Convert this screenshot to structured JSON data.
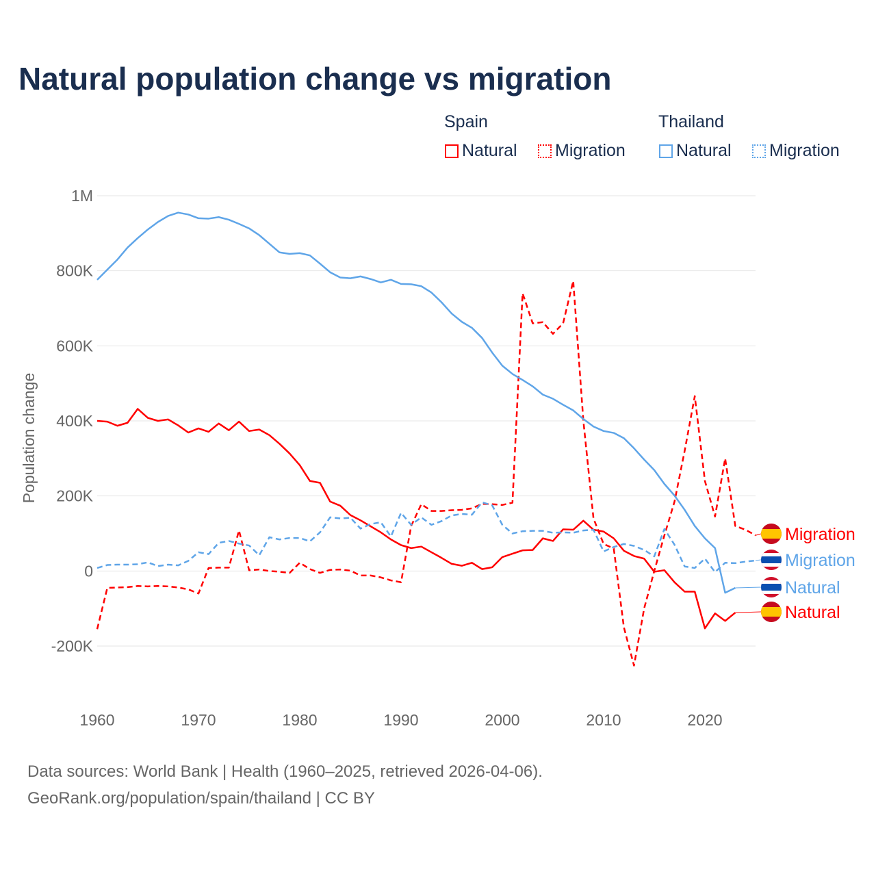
{
  "title": "Natural population change vs migration",
  "legend": {
    "groups": [
      {
        "name": "Spain",
        "color": "#ff0000",
        "items": [
          "Natural",
          "Migration"
        ]
      },
      {
        "name": "Thailand",
        "color": "#5fa5e8",
        "items": [
          "Natural",
          "Migration"
        ]
      }
    ]
  },
  "footer": {
    "line1": "Data sources: World Bank | Health (1960–2025, retrieved 2026-04-06).",
    "line2": "GeoRank.org/population/spain/thailand | CC BY"
  },
  "chart_data": {
    "type": "line",
    "title": "Natural population change vs migration",
    "xlabel": "",
    "ylabel": "Population change",
    "xlim": [
      1960,
      2025
    ],
    "ylim": [
      -200000,
      1000000
    ],
    "x_ticks": [
      "1960",
      "1970",
      "1980",
      "1990",
      "2000",
      "2010",
      "2020"
    ],
    "y_ticks": [
      {
        "v": 1000000,
        "l": "1M"
      },
      {
        "v": 800000,
        "l": "800K"
      },
      {
        "v": 600000,
        "l": "600K"
      },
      {
        "v": 400000,
        "l": "400K"
      },
      {
        "v": 200000,
        "l": "200K"
      },
      {
        "v": 0,
        "l": "0"
      },
      {
        "v": -200000,
        "l": "-200K"
      }
    ],
    "grid": true,
    "start_year": 1960,
    "units": "thousands",
    "series": [
      {
        "name": "Spain Natural",
        "label": "Natural",
        "country": "Spain",
        "color": "#ff0000",
        "dash": false,
        "values": [
          400,
          398,
          387,
          395,
          432,
          408,
          400,
          404,
          388,
          369,
          380,
          371,
          393,
          375,
          398,
          373,
          377,
          362,
          339,
          313,
          282,
          240,
          235,
          185,
          174,
          149,
          135,
          119,
          103,
          84,
          69,
          61,
          65,
          50,
          35,
          19,
          14,
          22,
          5,
          10,
          37,
          46,
          55,
          56,
          87,
          80,
          111,
          110,
          134,
          110,
          105,
          87,
          54,
          40,
          33,
          -2,
          2,
          -30,
          -55,
          -55,
          -153,
          -113,
          -133,
          -111
        ]
      },
      {
        "name": "Spain Migration",
        "label": "Migration",
        "country": "Spain",
        "color": "#ff0000",
        "dash": true,
        "values": [
          -155,
          -45,
          -44,
          -43,
          -40,
          -41,
          -40,
          -41,
          -44,
          -49,
          -60,
          8,
          9,
          9,
          108,
          2,
          4,
          0,
          -2,
          -5,
          22,
          5,
          -5,
          3,
          4,
          1,
          -12,
          -12,
          -17,
          -25,
          -30,
          120,
          178,
          160,
          160,
          162,
          163,
          167,
          179,
          178,
          176,
          182,
          740,
          660,
          663,
          632,
          660,
          773,
          400,
          140,
          72,
          60,
          -150,
          -252,
          -100,
          0,
          95,
          185,
          320,
          466,
          240,
          145,
          300,
          120,
          110,
          95
        ]
      },
      {
        "name": "Thailand Natural",
        "label": "Natural",
        "country": "Thailand",
        "color": "#5fa5e8",
        "dash": false,
        "values": [
          776,
          803,
          830,
          862,
          887,
          910,
          930,
          946,
          955,
          950,
          940,
          939,
          943,
          936,
          925,
          913,
          895,
          872,
          849,
          845,
          847,
          841,
          819,
          796,
          782,
          780,
          785,
          778,
          769,
          776,
          765,
          764,
          759,
          742,
          716,
          686,
          664,
          648,
          621,
          582,
          547,
          525,
          509,
          492,
          470,
          459,
          443,
          428,
          405,
          385,
          373,
          368,
          354,
          327,
          297,
          269,
          232,
          201,
          163,
          120,
          87,
          61,
          -58,
          -45
        ]
      },
      {
        "name": "Thailand Migration",
        "label": "Migration",
        "country": "Thailand",
        "color": "#5fa5e8",
        "dash": true,
        "values": [
          8,
          16,
          17,
          17,
          18,
          23,
          13,
          17,
          15,
          27,
          50,
          45,
          75,
          80,
          73,
          68,
          42,
          90,
          84,
          88,
          88,
          79,
          103,
          143,
          140,
          142,
          113,
          125,
          130,
          92,
          155,
          123,
          143,
          123,
          133,
          148,
          152,
          150,
          183,
          175,
          123,
          100,
          106,
          107,
          107,
          102,
          103,
          102,
          108,
          110,
          52,
          64,
          72,
          67,
          56,
          39,
          112,
          70,
          12,
          8,
          33,
          -3,
          22,
          21,
          25,
          28
        ]
      }
    ]
  }
}
